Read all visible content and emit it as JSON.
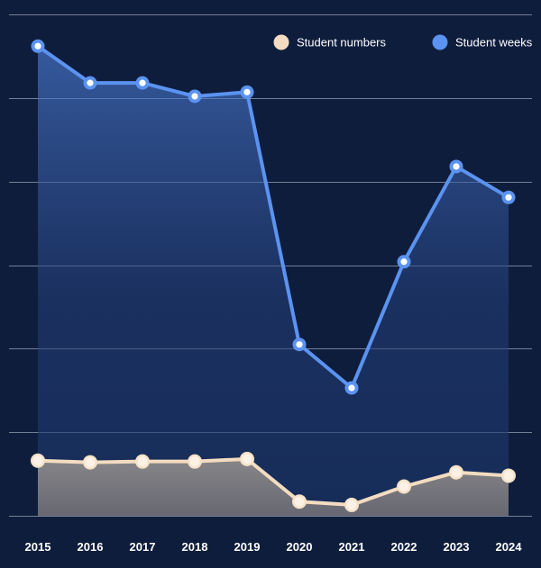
{
  "chart_data": {
    "type": "area",
    "title": "",
    "xlabel": "",
    "ylabel": "",
    "categories": [
      "2015",
      "2016",
      "2017",
      "2018",
      "2019",
      "2020",
      "2021",
      "2022",
      "2023",
      "2024"
    ],
    "ylim": [
      0,
      6
    ],
    "grid": true,
    "y_tick_labels_shown": false,
    "legend_position": "top-right",
    "series": [
      {
        "name": "Student numbers",
        "color": "#f3dcc0",
        "values": [
          0.66,
          0.64,
          0.65,
          0.65,
          0.68,
          0.17,
          0.13,
          0.35,
          0.52,
          0.48
        ]
      },
      {
        "name": "Student weeks",
        "color": "#5b93f0",
        "values": [
          5.62,
          5.18,
          5.18,
          5.02,
          5.07,
          2.05,
          1.53,
          3.04,
          4.18,
          3.81
        ]
      }
    ]
  }
}
